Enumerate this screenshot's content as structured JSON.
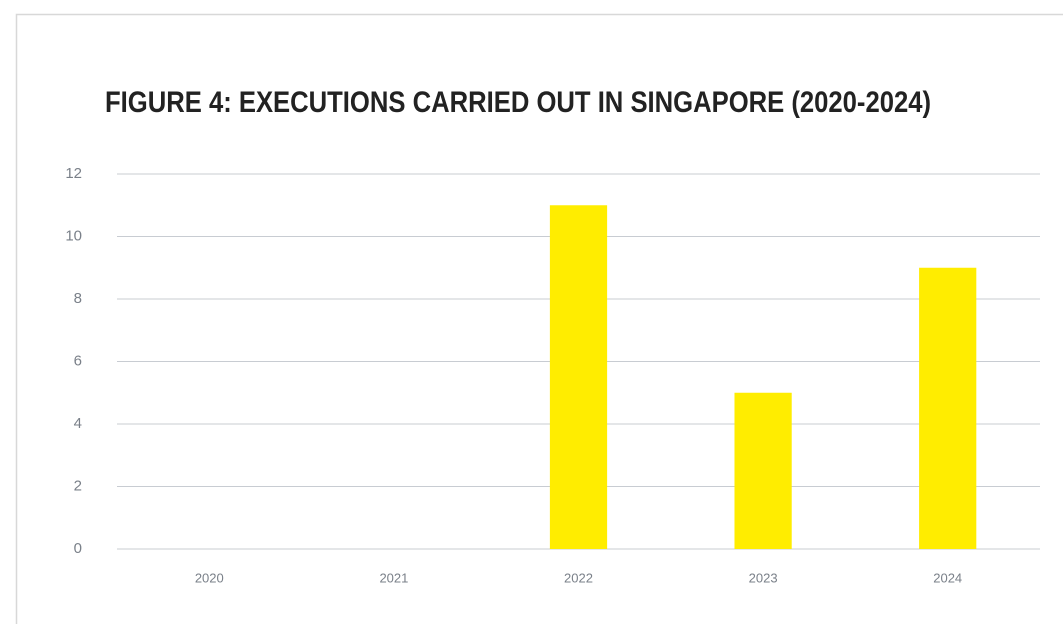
{
  "chart_data": {
    "type": "bar",
    "title": "FIGURE 4: EXECUTIONS CARRIED OUT IN SINGAPORE (2020-2024)",
    "categories": [
      "2020",
      "2021",
      "2022",
      "2023",
      "2024"
    ],
    "values": [
      0,
      0,
      11,
      5,
      9
    ],
    "color": "#ffed00",
    "ylim": [
      0,
      12
    ],
    "yticks": [
      0,
      2,
      4,
      6,
      8,
      10,
      12
    ],
    "grid": true
  }
}
